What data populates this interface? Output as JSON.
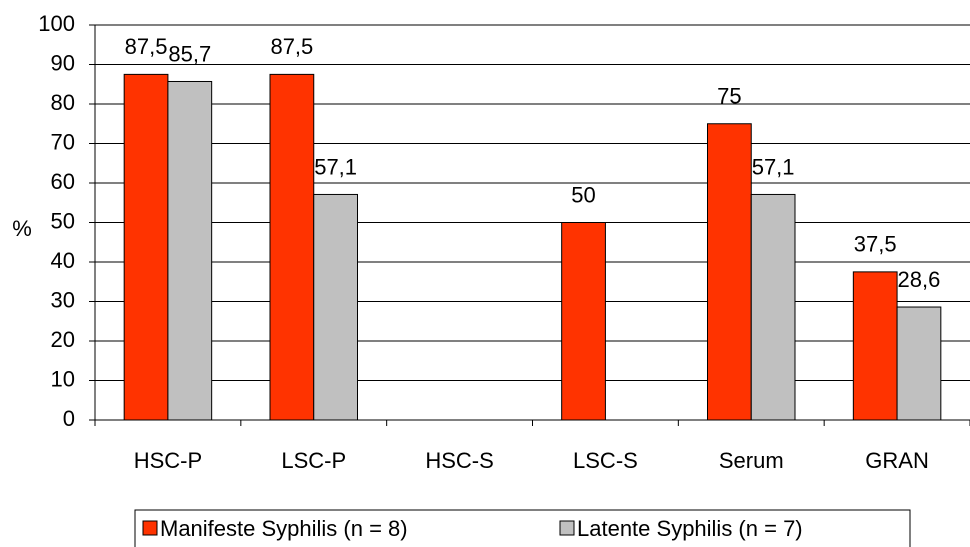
{
  "chart_data": {
    "type": "bar",
    "categories": [
      "HSC-P",
      "LSC-P",
      "HSC-S",
      "LSC-S",
      "Serum",
      "GRAN"
    ],
    "y_label": "%",
    "series": [
      {
        "name": "Manifeste Syphilis (n = 8)",
        "color": "#ff3300",
        "values": [
          87.5,
          87.5,
          null,
          50,
          75,
          37.5
        ],
        "value_labels": [
          "87,5",
          "87,5",
          null,
          "50",
          "75",
          "37,5"
        ]
      },
      {
        "name": "Latente Syphilis (n = 7)",
        "color": "#c0c0c0",
        "values": [
          85.7,
          57.1,
          null,
          null,
          57.1,
          28.6
        ],
        "value_labels": [
          "85,7",
          "57,1",
          null,
          null,
          "57,1",
          "28,6"
        ]
      }
    ],
    "ylim": [
      0,
      100
    ],
    "yticks": [
      0,
      10,
      20,
      30,
      40,
      50,
      60,
      70,
      80,
      90,
      100
    ],
    "grid": true,
    "legend": "bottom"
  }
}
